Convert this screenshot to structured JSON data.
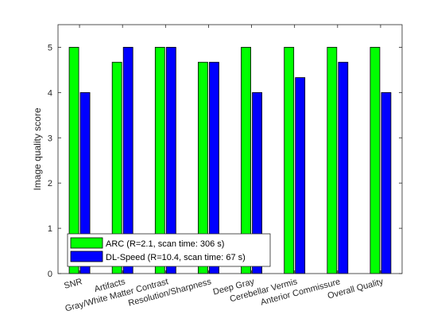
{
  "chart_data": {
    "type": "bar",
    "title": "",
    "xlabel": "",
    "ylabel": "Image quality score",
    "ylim": [
      0,
      5.5
    ],
    "yticks": [
      0,
      1,
      2,
      3,
      4,
      5
    ],
    "grid": false,
    "legend_position": "bottom-left",
    "categories": [
      "SNR",
      "Artifacts",
      "Gray/White Matter Contrast",
      "Resolution/Sharpness",
      "Deep Gray",
      "Cerebellar Vermis",
      "Anterior Commissure",
      "Overall Quality"
    ],
    "series": [
      {
        "name": "ARC (R=2.1, scan time: 306 s)",
        "color": "#00ff00",
        "values": [
          5,
          4.67,
          5,
          4.67,
          5,
          5,
          5,
          5
        ]
      },
      {
        "name": "DL-Speed (R=10.4, scan time: 67 s)",
        "color": "#0000ff",
        "values": [
          4,
          5,
          5,
          4.67,
          4,
          4.33,
          4.67,
          4
        ]
      }
    ]
  }
}
